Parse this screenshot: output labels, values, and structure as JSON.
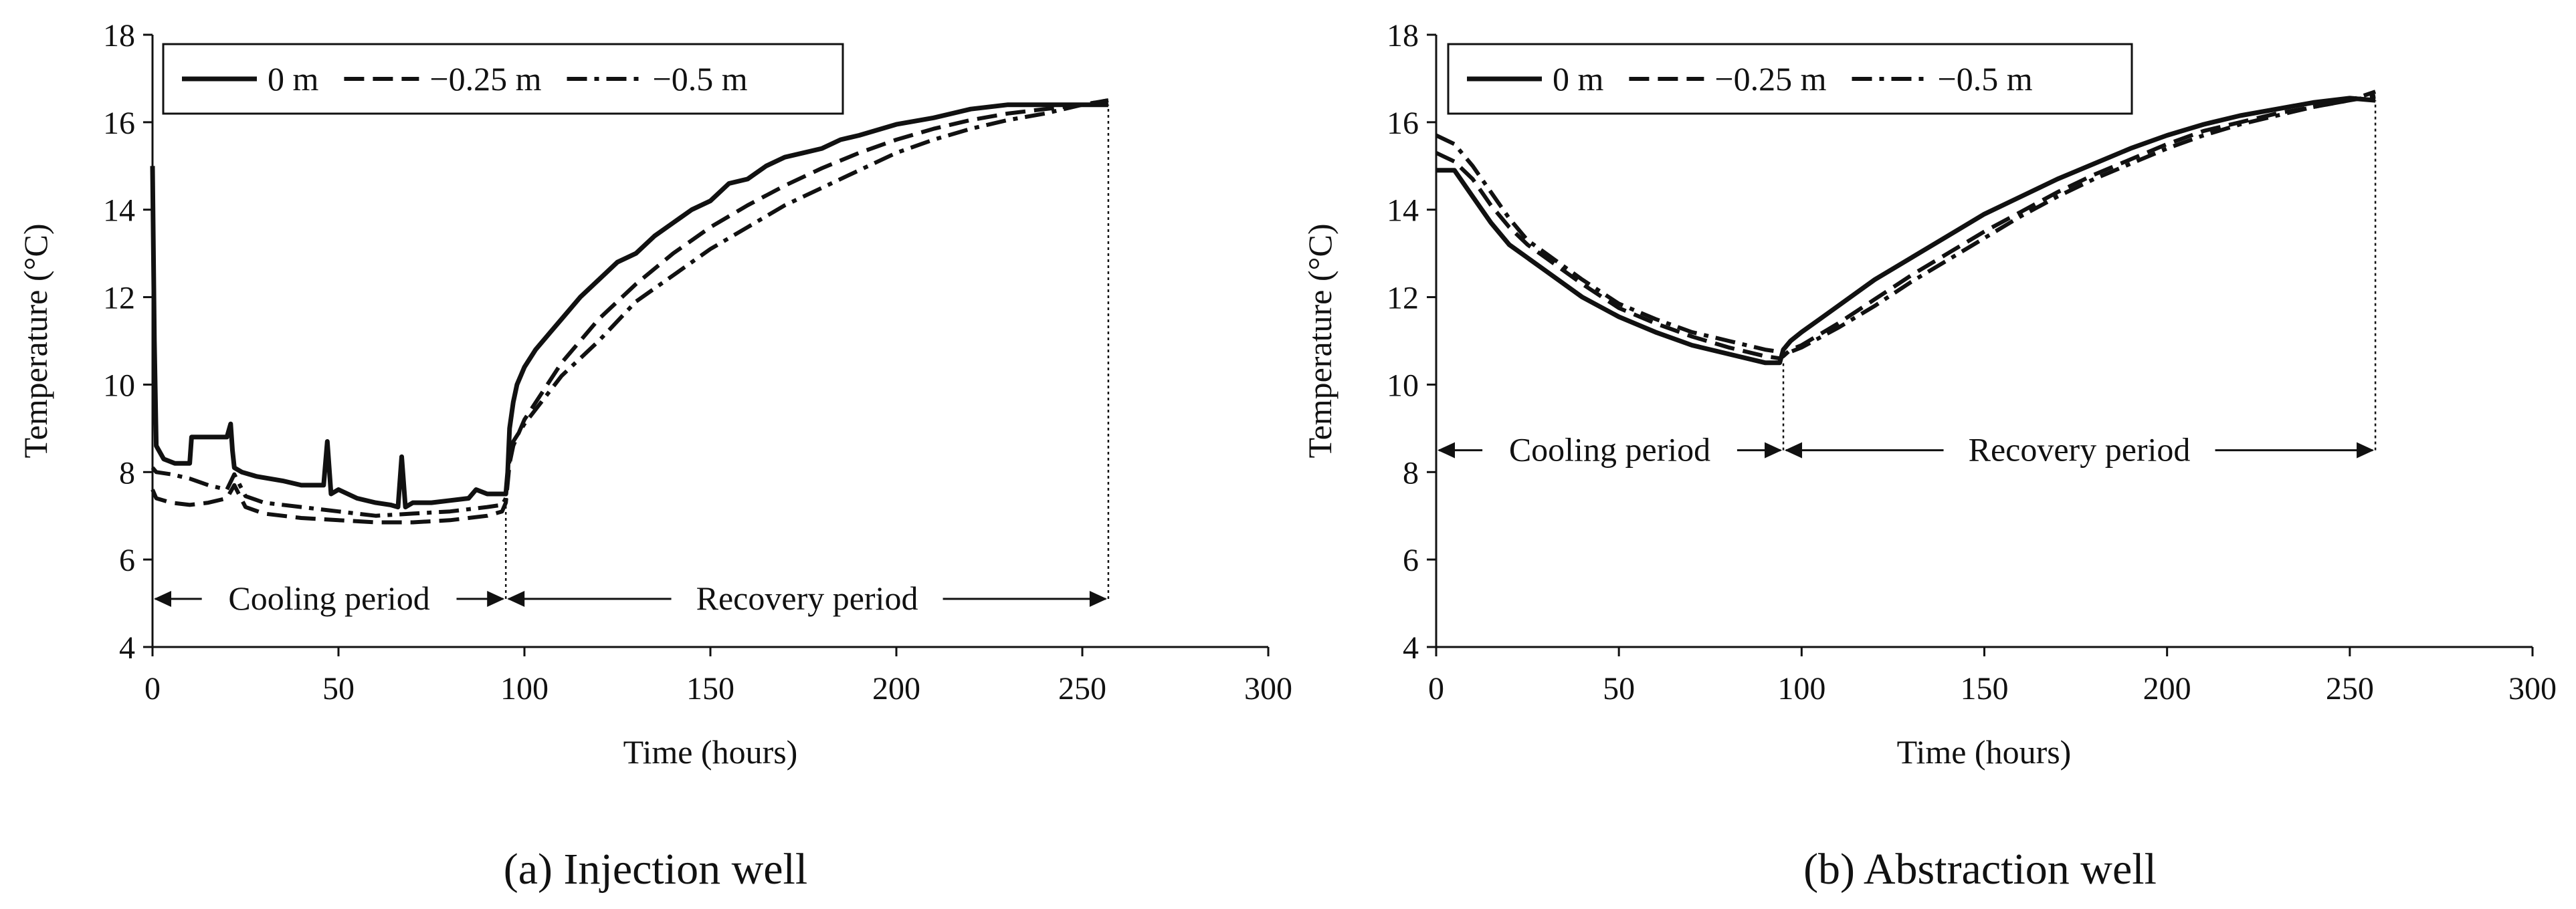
{
  "chart_data": [
    {
      "type": "line",
      "panel_caption": "(a) Injection well",
      "title": "",
      "xlabel": "Time (hours)",
      "ylabel": "Temperature (°C)",
      "xlim": [
        0,
        300
      ],
      "ylim": [
        4,
        18
      ],
      "xticks": [
        0,
        50,
        100,
        150,
        200,
        250,
        300
      ],
      "yticks": [
        4,
        6,
        8,
        10,
        12,
        14,
        16,
        18
      ],
      "grid": false,
      "legend_position": "top-left",
      "series": [
        {
          "name": "0 m",
          "style": "solid",
          "x": [
            0,
            0.5,
            1,
            3,
            6,
            10,
            10.5,
            19,
            20,
            21,
            21.5,
            22,
            24,
            28,
            35,
            40,
            46,
            47,
            48,
            50,
            55,
            60,
            64,
            66,
            67,
            68,
            70,
            75,
            80,
            85,
            87,
            90,
            95,
            95.5,
            96,
            97,
            98,
            100,
            103,
            107,
            110,
            115,
            120,
            125,
            130,
            135,
            140,
            145,
            150,
            155,
            160,
            165,
            170,
            175,
            180,
            185,
            190,
            200,
            210,
            220,
            230,
            240,
            250,
            255,
            257
          ],
          "values": [
            15.0,
            11.0,
            8.6,
            8.3,
            8.2,
            8.2,
            8.8,
            8.8,
            8.8,
            9.1,
            8.5,
            8.1,
            8.0,
            7.9,
            7.8,
            7.7,
            7.7,
            8.7,
            7.5,
            7.6,
            7.4,
            7.3,
            7.25,
            7.2,
            8.35,
            7.2,
            7.3,
            7.3,
            7.35,
            7.4,
            7.6,
            7.5,
            7.5,
            8.0,
            9.0,
            9.6,
            10.0,
            10.4,
            10.8,
            11.2,
            11.5,
            12.0,
            12.4,
            12.8,
            13.0,
            13.4,
            13.7,
            14.0,
            14.2,
            14.6,
            14.7,
            15.0,
            15.2,
            15.3,
            15.4,
            15.6,
            15.7,
            15.95,
            16.1,
            16.3,
            16.4,
            16.4,
            16.4,
            16.4,
            16.4
          ]
        },
        {
          "name": "−0.25 m",
          "style": "dashed",
          "x": [
            0,
            1,
            5,
            10,
            15,
            20,
            22,
            25,
            30,
            40,
            50,
            60,
            70,
            80,
            90,
            94,
            95,
            96,
            97,
            100,
            110,
            120,
            130,
            140,
            150,
            160,
            170,
            180,
            190,
            200,
            210,
            220,
            230,
            240,
            250,
            257
          ],
          "values": [
            7.6,
            7.4,
            7.3,
            7.25,
            7.3,
            7.4,
            7.7,
            7.2,
            7.05,
            6.95,
            6.9,
            6.85,
            6.85,
            6.9,
            7.0,
            7.1,
            7.3,
            8.2,
            8.6,
            9.2,
            10.5,
            11.5,
            12.3,
            13.0,
            13.6,
            14.1,
            14.55,
            14.95,
            15.3,
            15.6,
            15.85,
            16.05,
            16.2,
            16.3,
            16.4,
            16.5
          ]
        },
        {
          "name": "−0.5 m",
          "style": "dash-dot",
          "x": [
            0,
            1,
            5,
            10,
            15,
            20,
            22,
            25,
            30,
            40,
            50,
            60,
            70,
            80,
            90,
            94,
            95,
            96,
            97,
            100,
            110,
            120,
            130,
            140,
            150,
            160,
            170,
            180,
            190,
            200,
            210,
            220,
            230,
            240,
            250,
            257
          ],
          "values": [
            8.1,
            8.0,
            7.95,
            7.85,
            7.7,
            7.6,
            7.95,
            7.45,
            7.3,
            7.2,
            7.1,
            7.0,
            7.05,
            7.1,
            7.2,
            7.25,
            7.4,
            8.3,
            8.7,
            9.1,
            10.2,
            11.0,
            11.9,
            12.5,
            13.1,
            13.6,
            14.1,
            14.5,
            14.9,
            15.3,
            15.6,
            15.85,
            16.05,
            16.2,
            16.4,
            16.5
          ]
        }
      ],
      "annotations": [
        {
          "label": "Cooling period",
          "x_start": 0,
          "x_end": 95,
          "y": 5.1
        },
        {
          "label": "Recovery period",
          "x_start": 95,
          "x_end": 257,
          "y": 5.1
        }
      ],
      "vlines": [
        {
          "x": 95,
          "y_from": 5.1,
          "y_to": 7.4
        },
        {
          "x": 257,
          "y_from": 5.1,
          "y_to": 16.4
        }
      ]
    },
    {
      "type": "line",
      "panel_caption": "(b) Abstraction well",
      "title": "",
      "xlabel": "Time (hours)",
      "ylabel": "Temperature (°C)",
      "xlim": [
        0,
        300
      ],
      "ylim": [
        4,
        18
      ],
      "xticks": [
        0,
        50,
        100,
        150,
        200,
        250,
        300
      ],
      "yticks": [
        4,
        6,
        8,
        10,
        12,
        14,
        16,
        18
      ],
      "grid": false,
      "legend_position": "top-left",
      "series": [
        {
          "name": "0 m",
          "style": "solid",
          "x": [
            0,
            5,
            10,
            15,
            20,
            25,
            30,
            40,
            50,
            60,
            70,
            80,
            90,
            94,
            95,
            97,
            100,
            105,
            110,
            120,
            130,
            140,
            150,
            160,
            170,
            180,
            190,
            200,
            210,
            220,
            230,
            240,
            250,
            257
          ],
          "values": [
            14.9,
            14.9,
            14.3,
            13.7,
            13.2,
            12.9,
            12.6,
            12.0,
            11.55,
            11.2,
            10.9,
            10.7,
            10.5,
            10.5,
            10.8,
            11.0,
            11.2,
            11.5,
            11.8,
            12.4,
            12.9,
            13.4,
            13.9,
            14.3,
            14.7,
            15.05,
            15.4,
            15.7,
            15.95,
            16.15,
            16.3,
            16.45,
            16.55,
            16.5
          ]
        },
        {
          "name": "−0.25 m",
          "style": "dashed",
          "x": [
            0,
            5,
            10,
            15,
            20,
            25,
            30,
            40,
            50,
            60,
            70,
            80,
            90,
            94,
            95,
            97,
            100,
            110,
            120,
            130,
            140,
            150,
            160,
            170,
            180,
            190,
            200,
            210,
            220,
            230,
            240,
            250,
            257
          ],
          "values": [
            15.3,
            15.1,
            14.7,
            14.1,
            13.6,
            13.2,
            12.9,
            12.3,
            11.75,
            11.4,
            11.1,
            10.85,
            10.65,
            10.6,
            10.65,
            10.8,
            10.9,
            11.4,
            11.95,
            12.5,
            13.0,
            13.5,
            13.95,
            14.4,
            14.8,
            15.15,
            15.5,
            15.8,
            16.0,
            16.2,
            16.35,
            16.5,
            16.6
          ]
        },
        {
          "name": "−0.5 m",
          "style": "dash-dot",
          "x": [
            0,
            5,
            10,
            15,
            20,
            25,
            30,
            40,
            50,
            60,
            70,
            80,
            90,
            94,
            95,
            97,
            100,
            110,
            120,
            130,
            140,
            150,
            160,
            170,
            180,
            190,
            200,
            210,
            220,
            230,
            240,
            250,
            257
          ],
          "values": [
            15.7,
            15.5,
            15.0,
            14.4,
            13.8,
            13.3,
            13.0,
            12.4,
            11.85,
            11.5,
            11.2,
            11.0,
            10.8,
            10.75,
            10.7,
            10.75,
            10.85,
            11.3,
            11.8,
            12.35,
            12.85,
            13.35,
            13.85,
            14.3,
            14.7,
            15.05,
            15.4,
            15.7,
            15.95,
            16.15,
            16.35,
            16.5,
            16.7
          ]
        }
      ],
      "annotations": [
        {
          "label": "Cooling period",
          "x_start": 0,
          "x_end": 95,
          "y": 8.5
        },
        {
          "label": "Recovery period",
          "x_start": 95,
          "x_end": 257,
          "y": 8.5
        }
      ],
      "vlines": [
        {
          "x": 95,
          "y_from": 8.5,
          "y_to": 10.55
        },
        {
          "x": 257,
          "y_from": 8.5,
          "y_to": 16.5
        }
      ]
    }
  ]
}
